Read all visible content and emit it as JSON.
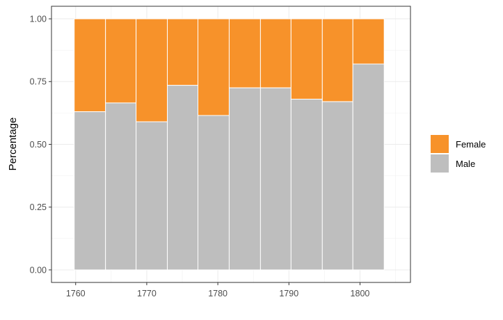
{
  "chart_data": {
    "type": "bar",
    "stacked": true,
    "title": "",
    "xlabel": "",
    "ylabel": "Percentage",
    "xlim": [
      1756.6,
      1807.1
    ],
    "ylim": [
      -0.05,
      1.05
    ],
    "x_ticks": [
      1760,
      1770,
      1780,
      1790,
      1800
    ],
    "y_ticks": [
      "0.00",
      "0.25",
      "0.50",
      "0.75",
      "1.00"
    ],
    "y_tick_values": [
      0,
      0.25,
      0.5,
      0.75,
      1.0
    ],
    "grid": true,
    "legend_position": "right",
    "bins": [
      {
        "start": 1759.8,
        "end": 1764.2,
        "male": 0.63
      },
      {
        "start": 1764.2,
        "end": 1768.5,
        "male": 0.665
      },
      {
        "start": 1768.5,
        "end": 1772.9,
        "male": 0.59
      },
      {
        "start": 1772.9,
        "end": 1777.2,
        "male": 0.735
      },
      {
        "start": 1777.2,
        "end": 1781.6,
        "male": 0.615
      },
      {
        "start": 1781.6,
        "end": 1786.0,
        "male": 0.725
      },
      {
        "start": 1786.0,
        "end": 1790.3,
        "male": 0.725
      },
      {
        "start": 1790.3,
        "end": 1794.7,
        "male": 0.68
      },
      {
        "start": 1794.7,
        "end": 1799.0,
        "male": 0.67
      },
      {
        "start": 1799.0,
        "end": 1803.4,
        "male": 0.82
      }
    ],
    "series": [
      {
        "name": "Female",
        "color": "#f7922a"
      },
      {
        "name": "Male",
        "color": "#bebebe"
      }
    ]
  }
}
